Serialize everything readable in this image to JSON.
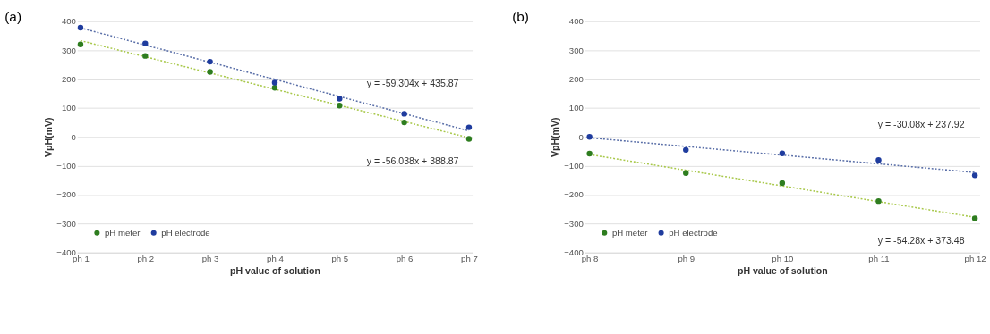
{
  "chart_data": [
    {
      "type": "scatter",
      "title": "(a)",
      "xlabel": "pH value of solution",
      "ylabel": "VpH(mV)",
      "categories": [
        "ph 1",
        "ph 2",
        "ph 3",
        "ph 4",
        "ph 5",
        "ph 6",
        "ph 7"
      ],
      "ylim": [
        -400,
        400
      ],
      "yticks": [
        -400,
        -300,
        -200,
        -100,
        0,
        100,
        200,
        300,
        400
      ],
      "grid": "y",
      "legend": "bottom left",
      "marker": "circle",
      "series": [
        {
          "name": "pH meter",
          "color": "#2e7d1f",
          "values": [
            320,
            280,
            225,
            170,
            108,
            50,
            -7
          ]
        },
        {
          "name": "pH electrode",
          "color": "#1f3c9e",
          "values": [
            378,
            323,
            260,
            188,
            132,
            80,
            33
          ]
        },
        {
          "type": "line",
          "color": "#a8c84a",
          "line_style": "dotted",
          "marker": "none",
          "x": [
            "ph 1",
            "ph 7"
          ],
          "values": [
            333,
            -3
          ]
        },
        {
          "type": "line",
          "color": "#5a6fa8",
          "line_style": "dotted",
          "marker": "none",
          "x": [
            "ph 1",
            "ph 7"
          ],
          "values": [
            377,
            21
          ]
        }
      ],
      "annotations": [
        "y = -59.304x + 435.87",
        "y = -56.038x + 388.87"
      ]
    },
    {
      "type": "scatter",
      "title": "(b)",
      "xlabel": "pH value of solution",
      "ylabel": "VpH(mV)",
      "categories": [
        "ph 8",
        "ph 9",
        "ph 10",
        "ph 11",
        "ph 12"
      ],
      "ylim": [
        -400,
        400
      ],
      "yticks": [
        -400,
        -300,
        -200,
        -100,
        0,
        100,
        200,
        300,
        400
      ],
      "grid": "y",
      "legend": "bottom left",
      "marker": "circle",
      "series": [
        {
          "name": "pH meter",
          "color": "#2e7d1f",
          "values": [
            -58,
            -125,
            -160,
            -222,
            -282
          ]
        },
        {
          "name": "pH electrode",
          "color": "#1f3c9e",
          "values": [
            0,
            -45,
            -57,
            -80,
            -133
          ]
        },
        {
          "type": "line",
          "color": "#a8c84a",
          "line_style": "dotted",
          "marker": "none",
          "x": [
            "ph 8",
            "ph 12"
          ],
          "values": [
            -61,
            -278
          ]
        },
        {
          "type": "line",
          "color": "#5a6fa8",
          "line_style": "dotted",
          "marker": "none",
          "x": [
            "ph 8",
            "ph 12"
          ],
          "values": [
            -3,
            -123
          ]
        }
      ],
      "annotations": [
        "y = -30.08x + 237.92",
        "y = -54.28x + 373.48"
      ]
    }
  ]
}
